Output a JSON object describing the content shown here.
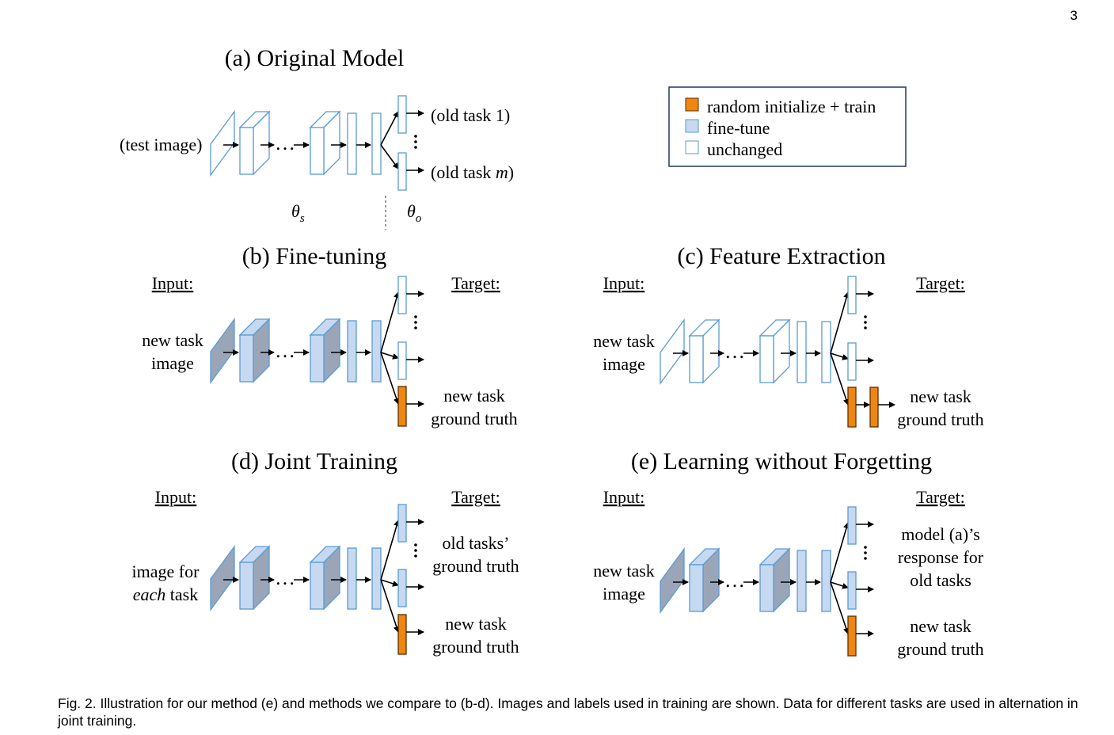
{
  "page_number": "3",
  "colors": {
    "train": "#ee8611",
    "train_stroke": "#5a3000",
    "finetune_fill": "#c6d9f1",
    "finetune_dark": "#9aa6b8",
    "unchanged_fill": "#ffffff",
    "stroke_blue": "#5b9bd5",
    "legend_border": "#1f3864"
  },
  "legend": {
    "items": [
      {
        "label": "random initialize + train",
        "kind": "train"
      },
      {
        "label": "fine-tune",
        "kind": "finetune"
      },
      {
        "label": "unchanged",
        "kind": "unchanged"
      }
    ]
  },
  "panel_a": {
    "title": "(a) Original Model",
    "input": "(test image)",
    "out1": "(old task 1)",
    "outm_prefix": "(old task ",
    "outm_var": "m",
    "outm_suffix": ")",
    "theta_s": "θ",
    "theta_s_sub": "s",
    "theta_o": "θ",
    "theta_o_sub": "o"
  },
  "panel_b": {
    "title": "(b) Fine-tuning",
    "input_head": "Input:",
    "target_head": "Target:",
    "input_lines": [
      "new task",
      "image"
    ],
    "target_new": [
      "new task",
      "ground truth"
    ]
  },
  "panel_c": {
    "title": "(c) Feature Extraction",
    "input_head": "Input:",
    "target_head": "Target:",
    "input_lines": [
      "new task",
      "image"
    ],
    "target_new": [
      "new task",
      "ground truth"
    ]
  },
  "panel_d": {
    "title": "(d) Joint Training",
    "input_head": "Input:",
    "target_head": "Target:",
    "input_line1": "image for",
    "input_line2_em": "each",
    "input_line2_rest": " task",
    "target_old": [
      "old tasks’",
      "ground truth"
    ],
    "target_new": [
      "new task",
      "ground truth"
    ]
  },
  "panel_e": {
    "title": "(e) Learning without Forgetting",
    "input_head": "Input:",
    "target_head": "Target:",
    "input_lines": [
      "new task",
      "image"
    ],
    "target_old": [
      "model (a)’s",
      "response for",
      "old tasks"
    ],
    "target_new": [
      "new task",
      "ground truth"
    ]
  },
  "caption": "Fig. 2. Illustration for our method (e) and methods we compare to (b-d). Images and labels used in training are shown. Data for different tasks are used in alternation in joint training."
}
